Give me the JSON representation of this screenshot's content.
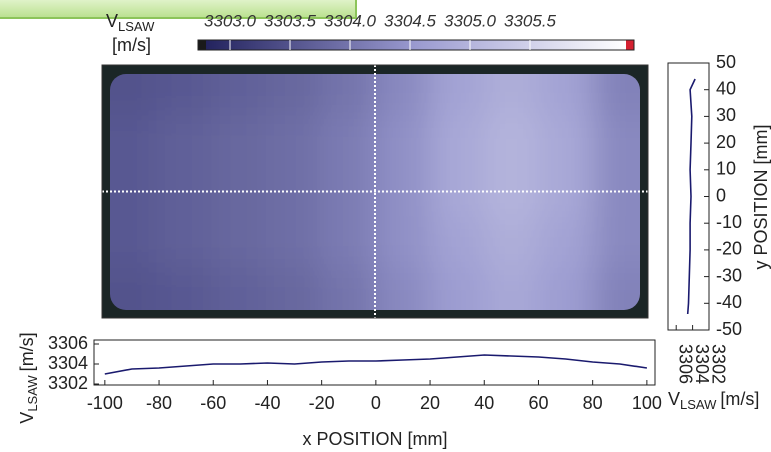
{
  "chart_data": [
    {
      "type": "heatmap",
      "colorbar_label": {
        "main": "V",
        "sub": "LSAW",
        "unit": "[m/s]"
      },
      "x": [
        -90,
        -70,
        -50,
        -30,
        -10,
        10,
        30,
        50,
        70,
        90
      ],
      "y": [
        40,
        20,
        0,
        -20,
        -40
      ],
      "z": [
        [
          3303.5,
          3303.6,
          3303.7,
          3303.8,
          3304.0,
          3304.3,
          3304.7,
          3304.9,
          3304.7,
          3304.2
        ],
        [
          3303.6,
          3303.7,
          3303.8,
          3303.9,
          3304.1,
          3304.4,
          3304.8,
          3305.0,
          3304.8,
          3304.3
        ],
        [
          3303.6,
          3303.7,
          3303.8,
          3303.9,
          3304.1,
          3304.4,
          3304.8,
          3305.0,
          3304.8,
          3304.3
        ],
        [
          3303.6,
          3303.7,
          3303.8,
          3303.9,
          3304.1,
          3304.4,
          3304.7,
          3304.9,
          3304.7,
          3304.3
        ],
        [
          3303.5,
          3303.6,
          3303.7,
          3303.8,
          3304.0,
          3304.3,
          3304.6,
          3304.8,
          3304.6,
          3304.2
        ]
      ],
      "xlim": [
        -100,
        100
      ],
      "ylim": [
        -50,
        50
      ],
      "clim": [
        3302.8,
        3306.3
      ],
      "cticks": [
        {
          "value": 3303,
          "label": "3303.0"
        },
        3303.5,
        {
          "value": 3304,
          "label": "3304.0"
        },
        3304.5,
        {
          "value": 3305,
          "label": "3305.0"
        },
        3305.5
      ],
      "colors": [
        "#23235e",
        "#9a9ad0",
        "#ffffff"
      ],
      "under_color": "#1a1a1a",
      "over_color": "#d42030",
      "crosshair": {
        "x": 0,
        "y": 0
      }
    },
    {
      "type": "line",
      "x": [
        -100,
        -90,
        -80,
        -70,
        -60,
        -50,
        -40,
        -30,
        -20,
        -10,
        0,
        10,
        20,
        30,
        40,
        50,
        60,
        70,
        80,
        90,
        100
      ],
      "values": [
        3303.0,
        3303.5,
        3303.6,
        3303.8,
        3304.0,
        3304.0,
        3304.1,
        3304.0,
        3304.2,
        3304.3,
        3304.3,
        3304.4,
        3304.5,
        3304.7,
        3304.9,
        3304.8,
        3304.7,
        3304.5,
        3304.2,
        3304.0,
        3303.6
      ],
      "color": "#1a1a6e",
      "xlim": [
        -104,
        103
      ],
      "ylim": [
        3301.9,
        3306.4
      ],
      "xticks": [
        -100,
        -80,
        -60,
        -40,
        -20,
        0,
        20,
        40,
        60,
        80,
        100
      ],
      "yticks": [
        3302,
        3304,
        3306
      ],
      "xlabel": "x POSITION [mm]",
      "ylabel": {
        "main": "V",
        "sub": "LSAW",
        "unit": "[m/s]"
      }
    },
    {
      "type": "profile",
      "y": [
        -44,
        -40,
        -30,
        -20,
        -10,
        0,
        10,
        20,
        30,
        40,
        44
      ],
      "values": [
        3304.6,
        3304.5,
        3304.4,
        3304.3,
        3304.3,
        3304.2,
        3304.3,
        3304.2,
        3304.1,
        3304.3,
        3303.7
      ],
      "color": "#1a1a6e",
      "xlim": [
        3307,
        3302
      ],
      "ylim": [
        -50,
        50
      ],
      "xticks": [
        3306,
        3304,
        3302
      ],
      "yticks": [
        50,
        40,
        30,
        20,
        10,
        0,
        -10,
        -20,
        -30,
        -40,
        -50
      ],
      "ylabel": "y POSITION [mm]",
      "xlabel": {
        "main": "V",
        "sub": "LSAW",
        "unit": "[m/s]"
      }
    }
  ]
}
